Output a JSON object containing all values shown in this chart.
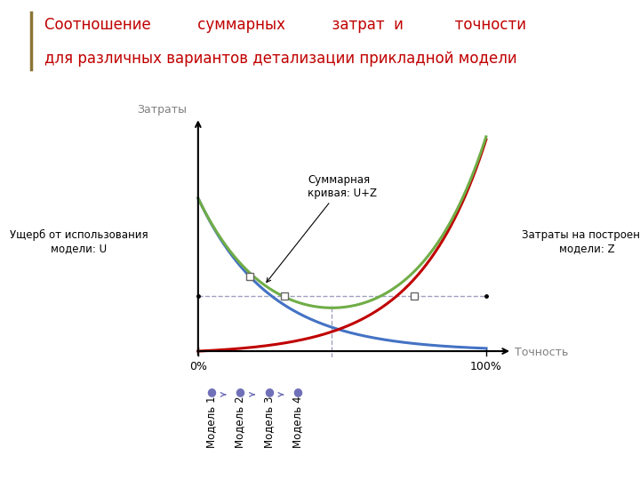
{
  "title_line1": "Соотношение          суммарных          затрат  и           точности",
  "title_line2": "для различных вариантов детализации прикладной модели",
  "title_color": "#c00000",
  "bg_color": "#ffffff",
  "ylabel": "Затраты",
  "xlabel": "Точность",
  "x_tick_labels": [
    "0%",
    "100%"
  ],
  "curve_blue_color": "#4472c4",
  "curve_red_color": "#c00000",
  "curve_green_color": "#70ad47",
  "annotation_summary": "Суммарная\nкривая: U+Z",
  "annotation_left": "Ущерб от использования\nмодели: U",
  "annotation_right": "Затраты на построение\nмодели: Z",
  "model_labels": [
    "Модель 1",
    "Модель 2",
    "Модель 3",
    "Модель 4"
  ],
  "model_dot_color": "#7070b8",
  "model_arrow_color": "#7070b8",
  "square_marker_color": "#666666",
  "dashed_line_color": "#a0a0c0",
  "title_bar_color": "#8B7536",
  "font_color_gray": "#808080"
}
